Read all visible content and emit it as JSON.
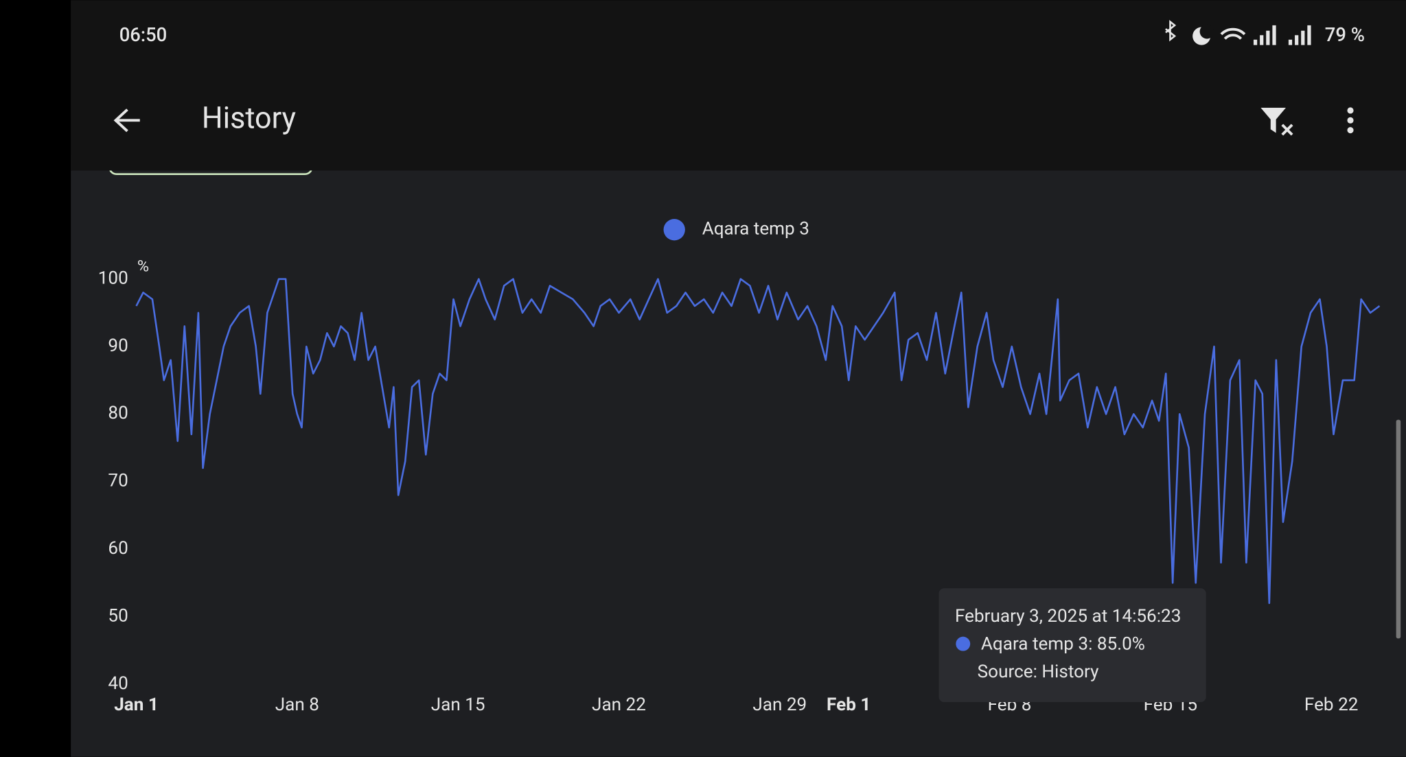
{
  "status_bar": {
    "time": "06:50",
    "battery": "79 %"
  },
  "app_bar": {
    "title": "History"
  },
  "chart_data": {
    "type": "line",
    "y_unit": "%",
    "xlim": [
      0,
      54.1
    ],
    "ylim": [
      40,
      100
    ],
    "xticks": [
      {
        "value": 0,
        "label": "Jan 1",
        "bold": true
      },
      {
        "value": 7,
        "label": "Jan 8"
      },
      {
        "value": 14,
        "label": "Jan 15"
      },
      {
        "value": 21,
        "label": "Jan 22"
      },
      {
        "value": 28,
        "label": "Jan 29"
      },
      {
        "value": 31,
        "label": "Feb 1",
        "bold": true
      },
      {
        "value": 38,
        "label": "Feb 8"
      },
      {
        "value": 45,
        "label": "Feb 15"
      },
      {
        "value": 52,
        "label": "Feb 22"
      }
    ],
    "yticks": [
      40,
      50,
      60,
      70,
      80,
      90,
      100
    ],
    "legend": "top",
    "series": [
      {
        "name": "Aqara temp 3",
        "color": "#4a6de0",
        "x": [
          0,
          0.3,
          0.7,
          1.0,
          1.2,
          1.5,
          1.8,
          2.1,
          2.4,
          2.7,
          2.9,
          3.2,
          3.5,
          3.8,
          4.1,
          4.5,
          4.9,
          5.2,
          5.4,
          5.7,
          6.0,
          6.2,
          6.5,
          6.8,
          7.0,
          7.2,
          7.4,
          7.7,
          8.0,
          8.3,
          8.6,
          8.9,
          9.2,
          9.5,
          9.8,
          10.1,
          10.4,
          10.7,
          11.0,
          11.2,
          11.4,
          11.7,
          12.0,
          12.3,
          12.6,
          12.9,
          13.2,
          13.5,
          13.8,
          14.1,
          14.5,
          14.9,
          15.2,
          15.6,
          16.0,
          16.4,
          16.8,
          17.2,
          17.6,
          18.0,
          18.5,
          19.0,
          19.5,
          19.9,
          20.2,
          20.6,
          21.0,
          21.5,
          21.9,
          22.3,
          22.7,
          23.1,
          23.5,
          23.9,
          24.3,
          24.7,
          25.1,
          25.5,
          25.9,
          26.3,
          26.7,
          27.1,
          27.5,
          27.9,
          28.3,
          28.8,
          29.2,
          29.6,
          30.0,
          30.3,
          30.7,
          31.0,
          31.3,
          31.7,
          32.1,
          32.5,
          33.0,
          33.3,
          33.6,
          34.0,
          34.4,
          34.8,
          35.2,
          35.6,
          35.9,
          36.2,
          36.6,
          37.0,
          37.3,
          37.7,
          38.1,
          38.5,
          38.9,
          39.3,
          39.6,
          40.1,
          40.2,
          40.6,
          41.0,
          41.4,
          41.8,
          42.2,
          42.6,
          43.0,
          43.4,
          43.8,
          44.2,
          44.5,
          44.8,
          45.1,
          45.4,
          45.8,
          46.1,
          46.5,
          46.9,
          47.2,
          47.6,
          48.0,
          48.3,
          48.7,
          49.0,
          49.3,
          49.6,
          49.9,
          50.3,
          50.7,
          51.1,
          51.5,
          51.8,
          52.1,
          52.5,
          53.0,
          53.3,
          53.7,
          54.1
        ],
        "values": [
          96,
          98,
          97,
          90,
          85,
          88,
          76,
          93,
          77,
          95,
          72,
          80,
          85,
          90,
          93,
          95,
          96,
          90,
          83,
          95,
          98,
          100,
          100,
          83,
          80,
          78,
          90,
          86,
          88,
          92,
          90,
          93,
          92,
          88,
          95,
          88,
          90,
          84,
          78,
          84,
          68,
          73,
          84,
          85,
          74,
          83,
          86,
          85,
          97,
          93,
          97,
          100,
          97,
          94,
          99,
          100,
          95,
          97,
          95,
          99,
          98,
          97,
          95,
          93,
          96,
          97,
          95,
          97,
          94,
          97,
          100,
          95,
          96,
          98,
          96,
          97,
          95,
          98,
          96,
          100,
          99,
          95,
          99,
          94,
          98,
          94,
          96,
          93,
          88,
          96,
          93,
          85,
          93,
          91,
          93,
          95,
          98,
          85,
          91,
          92,
          88,
          95,
          86,
          93,
          98,
          81,
          90,
          95,
          88,
          84,
          90,
          84,
          80,
          86,
          80,
          97,
          82,
          85,
          86,
          78,
          84,
          80,
          84,
          77,
          80,
          78,
          82,
          79,
          86,
          55,
          80,
          75,
          55,
          80,
          90,
          58,
          85,
          88,
          58,
          85,
          83,
          52,
          88,
          64,
          73,
          90,
          95,
          97,
          90,
          77,
          85,
          85,
          97,
          95,
          96
        ]
      }
    ]
  },
  "tooltip": {
    "title": "February 3, 2025 at 14:56:23",
    "line": "Aqara temp 3: 85.0%",
    "source": "Source: History"
  }
}
